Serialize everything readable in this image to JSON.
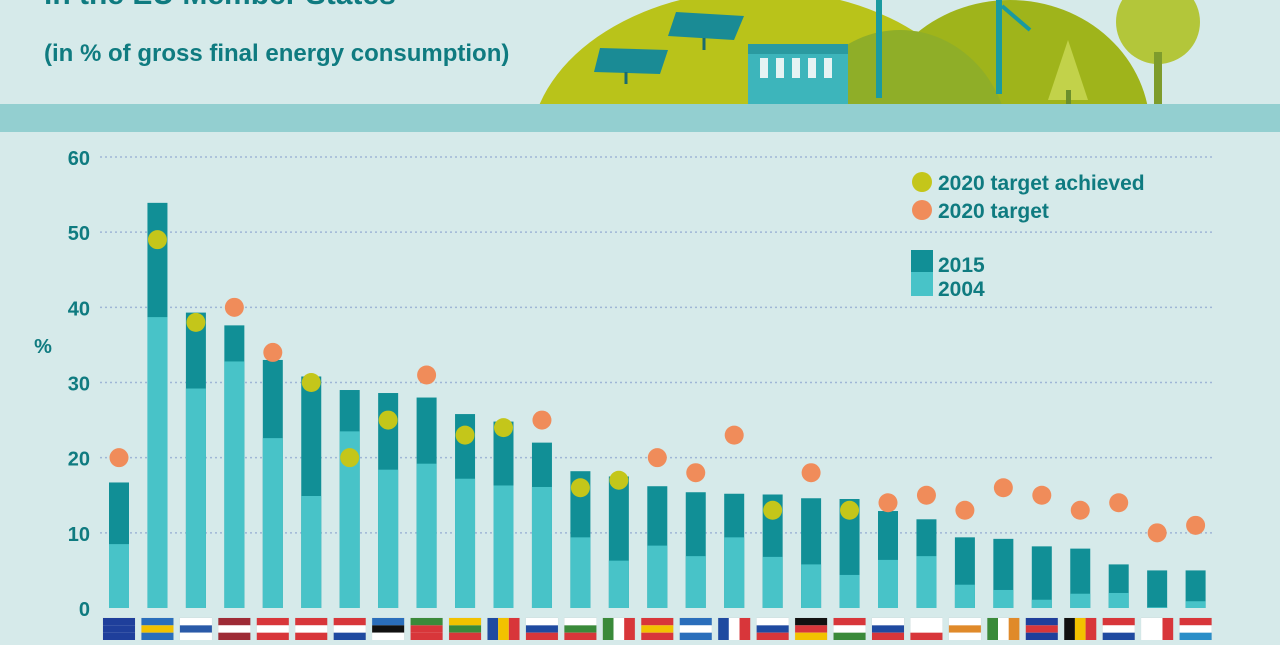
{
  "header": {
    "title_partial": "in the EU Member States",
    "subtitle": "(in % of gross final energy consumption)"
  },
  "colors": {
    "bar_2015": "#118f96",
    "bar_2004": "#48c3c8",
    "target": "#f08c5a",
    "achieved": "#c4c61a",
    "text": "#0f7b80"
  },
  "chart_data": {
    "type": "bar",
    "ylabel": "%",
    "ylim": [
      0,
      60
    ],
    "yticks": [
      0,
      10,
      20,
      30,
      40,
      50,
      60
    ],
    "grid": true,
    "legend_position": "top-right",
    "legend": {
      "achieved": "2020 target achieved",
      "target": "2020 target",
      "s2015": "2015",
      "s2004": "2004"
    },
    "categories": [
      "EU",
      "SE",
      "FI",
      "LV",
      "AT",
      "DK",
      "HR",
      "EE",
      "PT",
      "LT",
      "RO",
      "SI",
      "BG",
      "IT",
      "ES",
      "EL",
      "FR",
      "CZ",
      "DE",
      "HU",
      "SK",
      "PL",
      "CY",
      "IE",
      "UK",
      "BE",
      "NL",
      "MT",
      "LU"
    ],
    "series": [
      {
        "name": "2015",
        "values": [
          16.7,
          53.9,
          39.3,
          37.6,
          33.0,
          30.8,
          29.0,
          28.6,
          28.0,
          25.8,
          24.8,
          22.0,
          18.2,
          17.5,
          16.2,
          15.4,
          15.2,
          15.1,
          14.6,
          14.5,
          12.9,
          11.8,
          9.4,
          9.2,
          8.2,
          7.9,
          5.8,
          5.0,
          5.0
        ]
      },
      {
        "name": "2004",
        "values": [
          8.5,
          38.7,
          29.2,
          32.8,
          22.6,
          14.9,
          23.5,
          18.4,
          19.2,
          17.2,
          16.3,
          16.1,
          9.4,
          6.3,
          8.3,
          6.9,
          9.4,
          6.8,
          5.8,
          4.4,
          6.4,
          6.9,
          3.1,
          2.4,
          1.1,
          1.9,
          2.0,
          0.1,
          0.9
        ]
      },
      {
        "name": "2020 target",
        "values": [
          20,
          49,
          38,
          40,
          34,
          30,
          20,
          25,
          31,
          23,
          24,
          25,
          16,
          17,
          20,
          18,
          23,
          13,
          18,
          13,
          14,
          15,
          13,
          16,
          15,
          13,
          14,
          10,
          11
        ]
      }
    ],
    "target_achieved": [
      false,
      true,
      true,
      false,
      false,
      true,
      true,
      true,
      false,
      true,
      true,
      false,
      true,
      true,
      false,
      false,
      false,
      true,
      false,
      true,
      false,
      false,
      false,
      false,
      false,
      false,
      false,
      false,
      false
    ]
  }
}
